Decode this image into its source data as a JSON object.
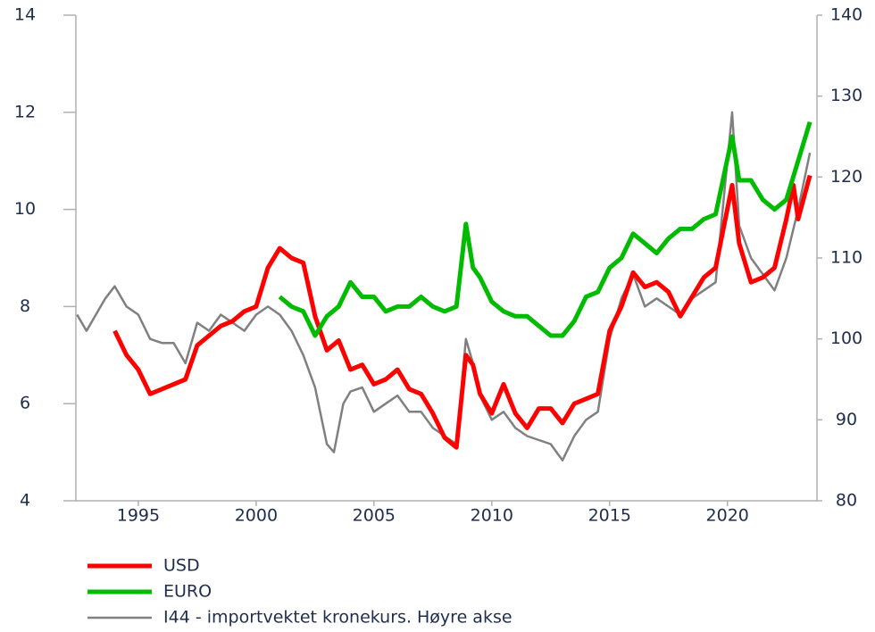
{
  "chart_data": {
    "type": "line",
    "xlim": [
      1992.35,
      2023.8
    ],
    "xticks": [
      1995,
      2000,
      2005,
      2010,
      2015,
      2020
    ],
    "ylim": [
      4,
      14
    ],
    "yticks": [
      4,
      6,
      8,
      10,
      12,
      14
    ],
    "y2lim": [
      80,
      140
    ],
    "y2ticks": [
      80,
      90,
      100,
      110,
      120,
      130,
      140
    ],
    "series": [
      {
        "name": "USD",
        "color": "#ff0000",
        "x": [
          1994.0,
          1994.5,
          1995.0,
          1995.5,
          1996.0,
          1996.5,
          1997.0,
          1997.5,
          1998.0,
          1998.5,
          1999.0,
          1999.5,
          2000.0,
          2000.5,
          2001.0,
          2001.5,
          2002.0,
          2002.5,
          2003.0,
          2003.5,
          2004.0,
          2004.5,
          2005.0,
          2005.5,
          2006.0,
          2006.5,
          2007.0,
          2007.5,
          2008.0,
          2008.5,
          2008.9,
          2009.2,
          2009.5,
          2010.0,
          2010.5,
          2011.0,
          2011.5,
          2012.0,
          2012.5,
          2013.0,
          2013.5,
          2014.0,
          2014.5,
          2015.0,
          2015.5,
          2016.0,
          2016.5,
          2017.0,
          2017.5,
          2018.0,
          2018.5,
          2019.0,
          2019.5,
          2020.2,
          2020.5,
          2021.0,
          2021.5,
          2022.0,
          2022.5,
          2022.8,
          2023.0,
          2023.5
        ],
        "values": [
          7.5,
          7.0,
          6.7,
          6.2,
          6.3,
          6.4,
          6.5,
          7.2,
          7.4,
          7.6,
          7.7,
          7.9,
          8.0,
          8.8,
          9.2,
          9.0,
          8.9,
          7.8,
          7.1,
          7.3,
          6.7,
          6.8,
          6.4,
          6.5,
          6.7,
          6.3,
          6.2,
          5.8,
          5.3,
          5.1,
          7.0,
          6.8,
          6.2,
          5.8,
          6.4,
          5.8,
          5.5,
          5.9,
          5.9,
          5.6,
          6.0,
          6.1,
          6.2,
          7.5,
          8.0,
          8.7,
          8.4,
          8.5,
          8.3,
          7.8,
          8.2,
          8.6,
          8.8,
          10.5,
          9.3,
          8.5,
          8.6,
          8.8,
          9.8,
          10.5,
          9.8,
          10.7
        ]
      },
      {
        "name": "EURO",
        "color": "#00bb00",
        "x": [
          2001.0,
          2001.5,
          2002.0,
          2002.5,
          2003.0,
          2003.5,
          2004.0,
          2004.5,
          2005.0,
          2005.5,
          2006.0,
          2006.5,
          2007.0,
          2007.5,
          2008.0,
          2008.5,
          2008.9,
          2009.2,
          2009.5,
          2010.0,
          2010.5,
          2011.0,
          2011.5,
          2012.0,
          2012.5,
          2013.0,
          2013.5,
          2014.0,
          2014.5,
          2015.0,
          2015.5,
          2016.0,
          2016.5,
          2017.0,
          2017.5,
          2018.0,
          2018.5,
          2019.0,
          2019.5,
          2020.2,
          2020.5,
          2021.0,
          2021.5,
          2022.0,
          2022.5,
          2023.0,
          2023.5
        ],
        "values": [
          8.2,
          8.0,
          7.9,
          7.4,
          7.8,
          8.0,
          8.5,
          8.2,
          8.2,
          7.9,
          8.0,
          8.0,
          8.2,
          8.0,
          7.9,
          8.0,
          9.7,
          8.8,
          8.6,
          8.1,
          7.9,
          7.8,
          7.8,
          7.6,
          7.4,
          7.4,
          7.7,
          8.2,
          8.3,
          8.8,
          9.0,
          9.5,
          9.3,
          9.1,
          9.4,
          9.6,
          9.6,
          9.8,
          9.9,
          11.5,
          10.6,
          10.6,
          10.2,
          10.0,
          10.2,
          11.0,
          11.8
        ]
      },
      {
        "name": "I44 - importvektet kronekurs. Høyre akse",
        "color": "#808080",
        "axis": "y2",
        "x": [
          1992.4,
          1992.8,
          1993.2,
          1993.6,
          1994.0,
          1994.5,
          1995.0,
          1995.5,
          1996.0,
          1996.5,
          1997.0,
          1997.5,
          1998.0,
          1998.5,
          1999.0,
          1999.5,
          2000.0,
          2000.5,
          2001.0,
          2001.5,
          2002.0,
          2002.5,
          2003.0,
          2003.3,
          2003.7,
          2004.0,
          2004.5,
          2005.0,
          2005.5,
          2006.0,
          2006.5,
          2007.0,
          2007.5,
          2008.0,
          2008.5,
          2008.9,
          2009.2,
          2009.5,
          2010.0,
          2010.5,
          2011.0,
          2011.5,
          2012.0,
          2012.5,
          2013.0,
          2013.5,
          2014.0,
          2014.5,
          2015.0,
          2015.5,
          2016.0,
          2016.5,
          2017.0,
          2017.5,
          2018.0,
          2018.5,
          2019.0,
          2019.5,
          2020.2,
          2020.5,
          2021.0,
          2021.5,
          2022.0,
          2022.5,
          2023.0,
          2023.5
        ],
        "values": [
          103,
          101,
          103,
          105,
          106.5,
          104,
          103,
          100,
          99.5,
          99.5,
          97,
          102,
          101,
          103,
          102,
          101,
          103,
          104,
          103,
          101,
          98,
          94,
          87,
          86,
          92,
          93.5,
          94,
          91,
          92,
          93,
          91,
          91,
          89,
          88,
          87,
          100,
          97,
          93,
          90,
          91,
          89,
          88,
          87.5,
          87,
          85,
          88,
          90,
          91,
          100,
          105,
          108,
          104,
          105,
          104,
          103,
          105,
          106,
          107,
          128,
          114,
          110,
          108,
          106,
          110,
          116,
          123
        ]
      }
    ]
  }
}
